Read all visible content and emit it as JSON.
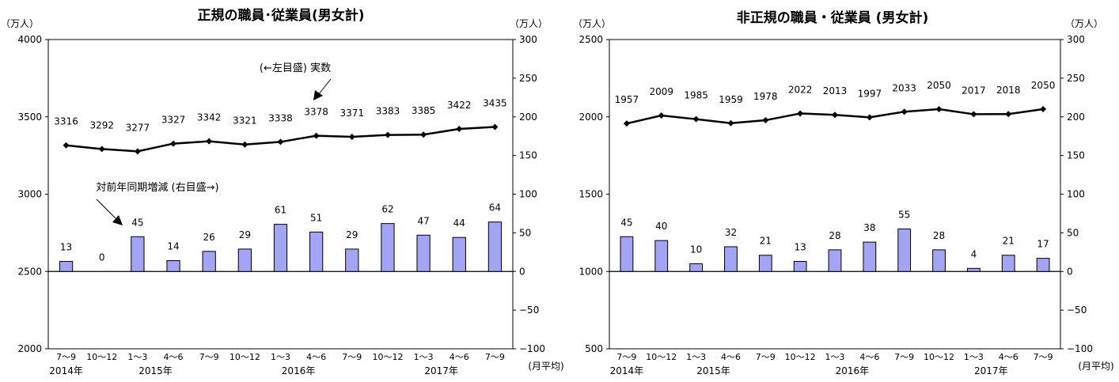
{
  "chart_data": [
    {
      "type": "bar+line",
      "title": "正規の職員･従業員(男女計)",
      "left_unit": "（万人）",
      "right_unit": "（万人）",
      "right_footer": "(月平均)",
      "left_axis": {
        "range": [
          2000,
          4000
        ],
        "ticks": [
          2000,
          2500,
          3000,
          3500,
          4000
        ]
      },
      "right_axis": {
        "range": [
          -100,
          300
        ],
        "ticks": [
          -100,
          -50,
          0,
          50,
          100,
          150,
          200,
          250,
          300
        ]
      },
      "categories": [
        "7～9",
        "10～12",
        "1～3",
        "4～6",
        "7～9",
        "10～12",
        "1～3",
        "4～6",
        "7～9",
        "10～12",
        "1～3",
        "4～6",
        "7～9"
      ],
      "year_labels": [
        {
          "text": "2014年",
          "index": 0
        },
        {
          "text": "2015年",
          "index": 2.5
        },
        {
          "text": "2016年",
          "index": 6.5
        },
        {
          "text": "2017年",
          "index": 10.5
        }
      ],
      "line": {
        "axis": "left",
        "values": [
          3316,
          3292,
          3277,
          3327,
          3342,
          3321,
          3338,
          3378,
          3371,
          3383,
          3385,
          3422,
          3435
        ]
      },
      "bars": {
        "axis": "right",
        "values": [
          13,
          0,
          45,
          14,
          26,
          29,
          61,
          51,
          29,
          62,
          47,
          44,
          64
        ]
      },
      "annotations": [
        "(←左目盛) 実数",
        "対前年同期増減 (右目盛→)"
      ]
    },
    {
      "type": "bar+line",
      "title": "非正規の職員・従業員 (男女計)",
      "left_unit": "（万人）",
      "right_unit": "（万人）",
      "right_footer": "(月平均)",
      "left_axis": {
        "range": [
          500,
          2500
        ],
        "ticks": [
          500,
          1000,
          1500,
          2000,
          2500
        ]
      },
      "right_axis": {
        "range": [
          -100,
          300
        ],
        "ticks": [
          -100,
          -50,
          0,
          50,
          100,
          150,
          200,
          250,
          300
        ]
      },
      "categories": [
        "7～9",
        "10～12",
        "1～3",
        "4～6",
        "7～9",
        "10～12",
        "1～3",
        "4～6",
        "7～9",
        "10～12",
        "1～3",
        "4～6",
        "7～9"
      ],
      "year_labels": [
        {
          "text": "2014年",
          "index": 0
        },
        {
          "text": "2015年",
          "index": 2.5
        },
        {
          "text": "2016年",
          "index": 6.5
        },
        {
          "text": "2017年",
          "index": 10.5
        }
      ],
      "line": {
        "axis": "left",
        "values": [
          1957,
          2009,
          1985,
          1959,
          1978,
          2022,
          2013,
          1997,
          2033,
          2050,
          2017,
          2018,
          2050
        ]
      },
      "bars": {
        "axis": "right",
        "values": [
          45,
          40,
          10,
          32,
          21,
          13,
          28,
          38,
          55,
          28,
          4,
          21,
          17
        ]
      },
      "annotations": []
    }
  ],
  "colors": {
    "bar_fill": "#a4a4f4",
    "bar_stroke": "#000000",
    "line": "#000000",
    "marker": "#000000"
  }
}
